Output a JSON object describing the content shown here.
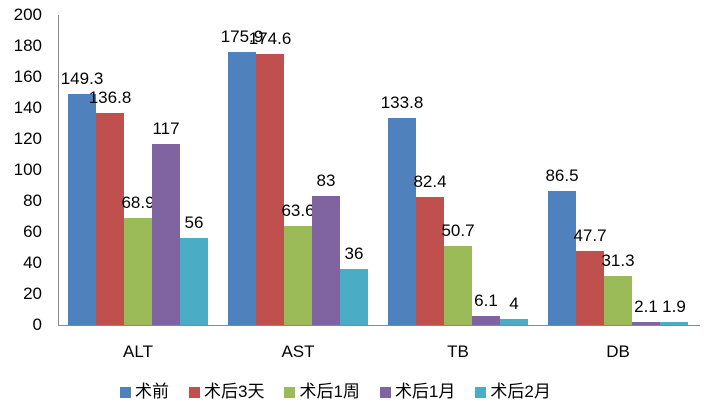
{
  "chart_data": {
    "type": "bar",
    "title": "",
    "xlabel": "",
    "ylabel": "",
    "ylim": [
      0,
      200
    ],
    "yticks": [
      0,
      20,
      40,
      60,
      80,
      100,
      120,
      140,
      160,
      180,
      200
    ],
    "grid": false,
    "legend_position": "bottom",
    "categories": [
      "ALT",
      "AST",
      "TB",
      "DB"
    ],
    "series": [
      {
        "name": "术前",
        "color": "#4f81bd",
        "values": [
          149.3,
          175.9,
          133.8,
          86.5
        ]
      },
      {
        "name": "术后3天",
        "color": "#c0504d",
        "values": [
          136.8,
          174.6,
          82.4,
          47.7
        ]
      },
      {
        "name": "术后1周",
        "color": "#9bbb59",
        "values": [
          68.9,
          63.6,
          50.7,
          31.3
        ]
      },
      {
        "name": "术后1月",
        "color": "#8064a2",
        "values": [
          117,
          83,
          6.1,
          2.1
        ]
      },
      {
        "name": "术后2月",
        "color": "#4bacc6",
        "values": [
          56,
          36,
          4,
          1.9
        ]
      }
    ]
  }
}
